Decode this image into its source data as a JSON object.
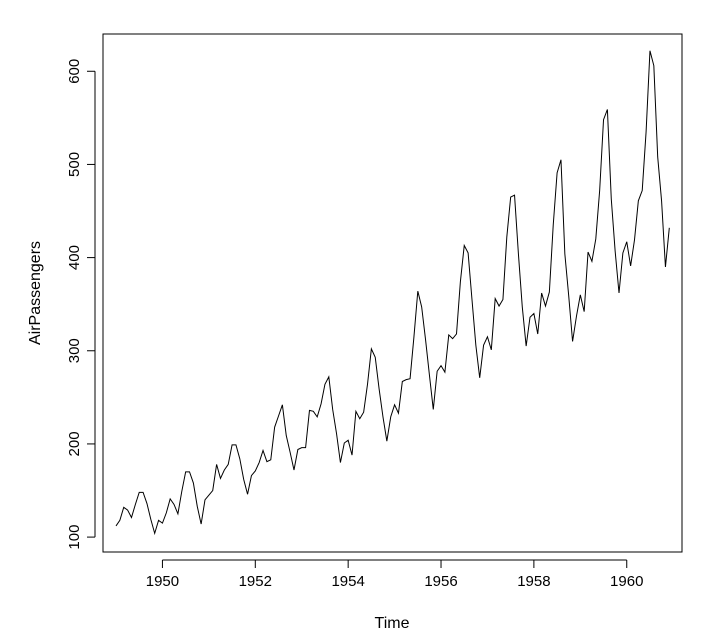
{
  "chart_data": {
    "type": "line",
    "title": "",
    "xlabel": "Time",
    "ylabel": "AirPassengers",
    "xlim": [
      1948.72,
      1961.19
    ],
    "ylim": [
      84,
      640
    ],
    "xticks": [
      1950,
      1952,
      1954,
      1956,
      1958,
      1960
    ],
    "yticks": [
      100,
      200,
      300,
      400,
      500,
      600
    ],
    "grid": false,
    "line_color": "#000000",
    "series": [
      {
        "x_start": 1949,
        "x_step": 0.08333333,
        "values": [
          112,
          118,
          132,
          129,
          121,
          135,
          148,
          148,
          136,
          119,
          104,
          118,
          115,
          126,
          141,
          135,
          125,
          149,
          170,
          170,
          158,
          133,
          114,
          140,
          145,
          150,
          178,
          163,
          172,
          178,
          199,
          199,
          184,
          162,
          146,
          166,
          171,
          180,
          193,
          181,
          183,
          218,
          230,
          242,
          209,
          191,
          172,
          194,
          196,
          196,
          236,
          235,
          229,
          243,
          264,
          272,
          237,
          211,
          180,
          201,
          204,
          188,
          235,
          227,
          234,
          264,
          302,
          293,
          259,
          229,
          203,
          229,
          242,
          233,
          267,
          269,
          270,
          315,
          364,
          347,
          312,
          274,
          237,
          278,
          284,
          277,
          317,
          313,
          318,
          374,
          413,
          405,
          355,
          306,
          271,
          306,
          315,
          301,
          356,
          348,
          355,
          422,
          465,
          467,
          404,
          347,
          305,
          336,
          340,
          318,
          362,
          348,
          363,
          435,
          491,
          505,
          404,
          359,
          310,
          337,
          360,
          342,
          406,
          396,
          420,
          472,
          548,
          559,
          463,
          407,
          362,
          405,
          417,
          391,
          419,
          461,
          472,
          535,
          622,
          606,
          508,
          461,
          390,
          432
        ]
      }
    ]
  }
}
